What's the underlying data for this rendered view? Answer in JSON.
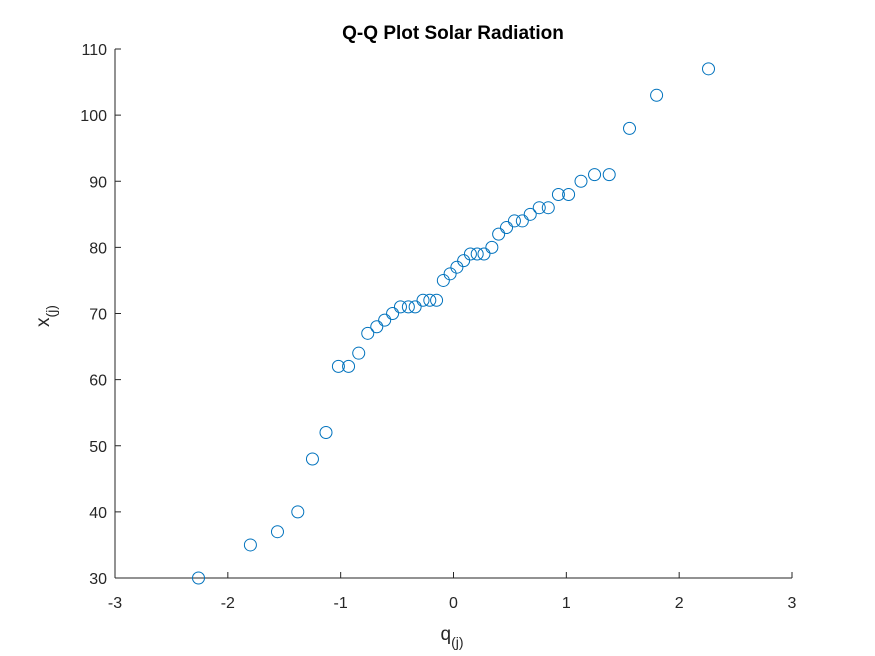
{
  "chart_data": {
    "type": "scatter",
    "title": "Q-Q Plot Solar Radiation",
    "xlabel": {
      "main": "q",
      "sub": "(j)"
    },
    "ylabel": {
      "main": "x",
      "sub": "(j)"
    },
    "xlim": [
      -3,
      3
    ],
    "ylim": [
      30,
      110
    ],
    "xticks": [
      -3,
      -2,
      -1,
      0,
      1,
      2,
      3
    ],
    "yticks": [
      30,
      40,
      50,
      60,
      70,
      80,
      90,
      100,
      110
    ],
    "grid": false,
    "marker": "open-circle",
    "marker_color": "#0072BD",
    "axis_color": "#262626",
    "points": [
      [
        -2.26,
        30
      ],
      [
        -1.8,
        35
      ],
      [
        -1.56,
        37
      ],
      [
        -1.38,
        40
      ],
      [
        -1.25,
        48
      ],
      [
        -1.13,
        52
      ],
      [
        -1.02,
        62
      ],
      [
        -0.93,
        62
      ],
      [
        -0.84,
        64
      ],
      [
        -0.76,
        67
      ],
      [
        -0.68,
        68
      ],
      [
        -0.61,
        69
      ],
      [
        -0.54,
        70
      ],
      [
        -0.47,
        71
      ],
      [
        -0.4,
        71
      ],
      [
        -0.34,
        71
      ],
      [
        -0.27,
        72
      ],
      [
        -0.21,
        72
      ],
      [
        -0.15,
        72
      ],
      [
        -0.09,
        75
      ],
      [
        -0.03,
        76
      ],
      [
        0.03,
        77
      ],
      [
        0.09,
        78
      ],
      [
        0.15,
        79
      ],
      [
        0.21,
        79
      ],
      [
        0.27,
        79
      ],
      [
        0.34,
        80
      ],
      [
        0.4,
        82
      ],
      [
        0.47,
        83
      ],
      [
        0.54,
        84
      ],
      [
        0.61,
        84
      ],
      [
        0.68,
        85
      ],
      [
        0.76,
        86
      ],
      [
        0.84,
        86
      ],
      [
        0.93,
        88
      ],
      [
        1.02,
        88
      ],
      [
        1.13,
        90
      ],
      [
        1.25,
        91
      ],
      [
        1.38,
        91
      ],
      [
        1.56,
        98
      ],
      [
        1.8,
        103
      ],
      [
        2.26,
        107
      ]
    ]
  }
}
